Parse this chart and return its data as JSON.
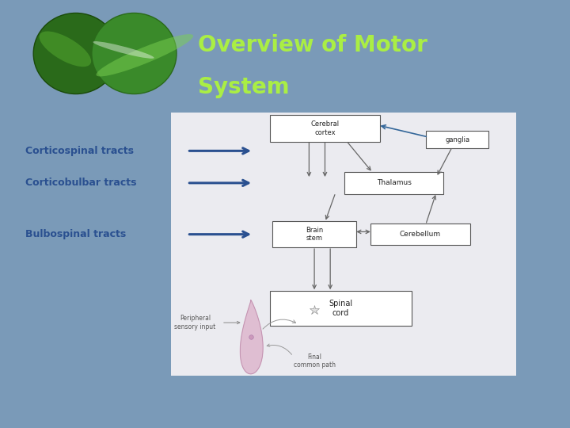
{
  "title_line1": "Overview of Motor",
  "title_line2": "System",
  "title_color": "#AAEE44",
  "header_bg_color": "#4d6e96",
  "outer_bg_color": "#7a9ab8",
  "content_bg_color": "#f5f5f8",
  "diagram_bg_color": "#ececf0",
  "label1": "Corticospinal tracts",
  "label2": "Corticobulbar tracts",
  "label3": "Bulbospinal tracts",
  "label_color": "#2a5090",
  "arrow_color": "#2a5090",
  "diagram_arrow_color": "#666666",
  "neuron_color": "#dbb0c8"
}
